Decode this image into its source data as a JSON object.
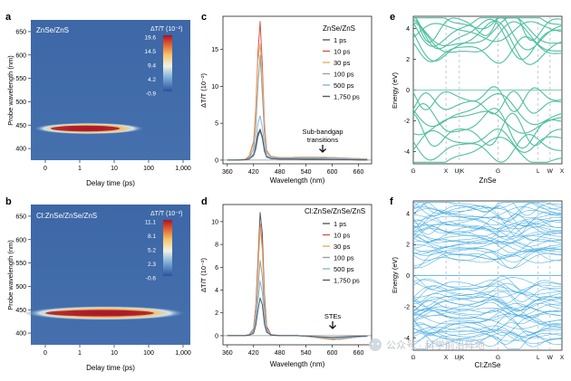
{
  "panels": {
    "a": {
      "letter": "a",
      "sample": "ZnSe/ZnS",
      "cbar_title": "ΔT/T (10⁻²)",
      "cbar_ticks": [
        "19.6",
        "14.5",
        "9.4",
        "4.2",
        "-0.9"
      ],
      "ylabel": "Probe wavelength (nm)",
      "xlabel": "Delay time (ps)",
      "yticks": [
        650,
        600,
        550,
        500,
        450,
        400
      ],
      "xticks": [
        "0",
        "1",
        "10",
        "100",
        "1,000"
      ]
    },
    "b": {
      "letter": "b",
      "sample": "Cl:ZnSe/ZnSe/ZnS",
      "cbar_title": "ΔT/T (10⁻²)",
      "cbar_ticks": [
        "11.1",
        "8.1",
        "5.2",
        "2.3",
        "-0.6"
      ],
      "ylabel": "Probe wavelength (nm)",
      "xlabel": "Delay time (ps)",
      "yticks": [
        650,
        600,
        550,
        500,
        450,
        400
      ],
      "xticks": [
        "0",
        "1",
        "10",
        "100",
        "1,000"
      ]
    },
    "c": {
      "letter": "c",
      "ylabel": "ΔT/T (10⁻²)",
      "xlabel": "Wavelength (nm)",
      "legend_title": "ZnSe/ZnS",
      "annotation": [
        "Sub-bandgap",
        "transitions"
      ]
    },
    "d": {
      "letter": "d",
      "ylabel": "ΔT/T (10⁻²)",
      "xlabel": "Wavelength (nm)",
      "legend_title": "Cl:ZnSe/ZnSe/ZnS",
      "annotation": [
        "STEs"
      ]
    },
    "e": {
      "letter": "e",
      "ylabel": "Energy (eV)",
      "xlabel": "ZnSe",
      "kpoints": [
        "G",
        "X",
        "U|K",
        "G",
        "L",
        "W",
        "X"
      ]
    },
    "f": {
      "letter": "f",
      "ylabel": "Energy (eV)",
      "xlabel": "Cl:ZnSe",
      "kpoints": [
        "G",
        "X",
        "U|K",
        "G",
        "L",
        "W",
        "X"
      ]
    }
  },
  "delays": [
    "1 ps",
    "10 ps",
    "30 ps",
    "100 ps",
    "500 ps",
    "1,750 ps"
  ],
  "colors": {
    "delay_series": [
      "#5a5a5a",
      "#d9534a",
      "#e3b060",
      "#9aa0a6",
      "#8ab6d6",
      "#4b5d6e"
    ],
    "band_e": "#4fbfa0",
    "band_f": "#3aa6e0",
    "heatmap_bg": "#3f6aa8"
  },
  "watermark": "公众号 · 科学前沿阵地",
  "chart_data": [
    {
      "type": "line",
      "panel": "c",
      "x": [
        360,
        380,
        400,
        410,
        420,
        425,
        430,
        435,
        440,
        445,
        450,
        460,
        480,
        500,
        520,
        540,
        560,
        580,
        600,
        620,
        640,
        660,
        680
      ],
      "series": [
        {
          "name": "1 ps",
          "values": [
            0,
            0,
            0.05,
            0.2,
            0.8,
            2.0,
            3.6,
            4.2,
            3.2,
            1.4,
            0.5,
            0.2,
            0.15,
            0.15,
            0.15,
            0.1,
            0.1,
            0.1,
            0.08,
            0.05,
            0.05,
            0.03,
            0.02
          ]
        },
        {
          "name": "10 ps",
          "values": [
            0,
            0,
            0.1,
            0.5,
            2.5,
            7.0,
            14.5,
            18.8,
            13.0,
            5.0,
            1.3,
            0.5,
            0.35,
            0.35,
            0.4,
            0.4,
            0.4,
            0.38,
            0.35,
            0.3,
            0.25,
            0.2,
            0.15
          ]
        },
        {
          "name": "30 ps",
          "values": [
            0,
            0,
            0.1,
            0.4,
            2.2,
            6.5,
            13.5,
            15.8,
            11.5,
            4.5,
            1.2,
            0.5,
            0.35,
            0.35,
            0.4,
            0.4,
            0.4,
            0.38,
            0.35,
            0.3,
            0.25,
            0.2,
            0.15
          ]
        },
        {
          "name": "100 ps",
          "values": [
            0,
            0,
            0.1,
            0.3,
            1.5,
            4.5,
            10.0,
            14.2,
            9.0,
            3.5,
            1.0,
            0.4,
            0.3,
            0.3,
            0.32,
            0.32,
            0.32,
            0.3,
            0.28,
            0.25,
            0.2,
            0.15,
            0.1
          ]
        },
        {
          "name": "500 ps",
          "values": [
            0,
            0,
            0.05,
            0.2,
            0.9,
            2.5,
            5.0,
            6.0,
            4.5,
            2.0,
            0.6,
            0.3,
            0.2,
            0.2,
            0.2,
            0.2,
            0.2,
            0.18,
            0.15,
            0.12,
            0.1,
            0.08,
            0.05
          ]
        },
        {
          "name": "1,750 ps",
          "values": [
            0,
            0,
            0.05,
            0.15,
            0.6,
            1.5,
            3.2,
            4.0,
            3.0,
            1.2,
            0.4,
            0.2,
            0.15,
            0.15,
            0.15,
            0.12,
            0.12,
            0.1,
            0.08,
            0.06,
            0.05,
            0.04,
            0.02
          ]
        }
      ],
      "xlabel": "Wavelength (nm)",
      "ylabel": "ΔT/T (10⁻²)",
      "xticks": [
        360,
        420,
        480,
        540,
        600,
        660
      ],
      "yticks": [
        0,
        5,
        10,
        15
      ],
      "xlim": [
        350,
        690
      ],
      "ylim": [
        -0.5,
        19.5
      ]
    },
    {
      "type": "line",
      "panel": "d",
      "x": [
        360,
        380,
        400,
        410,
        420,
        425,
        430,
        435,
        440,
        445,
        450,
        460,
        480,
        500,
        520,
        540,
        560,
        580,
        600,
        620,
        640,
        660,
        680
      ],
      "series": [
        {
          "name": "1 ps",
          "values": [
            0,
            0,
            0,
            0.1,
            0.6,
            2.5,
            6.5,
            10.8,
            9.0,
            3.5,
            0.8,
            0.1,
            0,
            0,
            0,
            -0.05,
            -0.15,
            -0.25,
            -0.35,
            -0.3,
            -0.2,
            -0.1,
            -0.05
          ]
        },
        {
          "name": "10 ps",
          "values": [
            0,
            0,
            0,
            0.1,
            0.6,
            2.4,
            6.0,
            9.8,
            8.0,
            3.0,
            0.7,
            0.1,
            0,
            0,
            0,
            -0.05,
            -0.15,
            -0.25,
            -0.35,
            -0.3,
            -0.2,
            -0.1,
            -0.05
          ]
        },
        {
          "name": "30 ps",
          "values": [
            0,
            0,
            0,
            0.1,
            0.5,
            2.2,
            5.5,
            9.5,
            7.5,
            2.8,
            0.6,
            0.1,
            0,
            0,
            0,
            -0.05,
            -0.15,
            -0.25,
            -0.35,
            -0.3,
            -0.2,
            -0.1,
            -0.05
          ]
        },
        {
          "name": "100 ps",
          "values": [
            0,
            0,
            0,
            0.1,
            0.4,
            1.8,
            4.0,
            6.6,
            5.2,
            2.0,
            0.5,
            0.1,
            0,
            0,
            0,
            -0.05,
            -0.12,
            -0.2,
            -0.28,
            -0.25,
            -0.18,
            -0.1,
            -0.05
          ]
        },
        {
          "name": "500 ps",
          "values": [
            0,
            0,
            0,
            0.05,
            0.3,
            1.2,
            3.0,
            4.8,
            3.8,
            1.5,
            0.4,
            0.05,
            0,
            0,
            0,
            -0.03,
            -0.1,
            -0.15,
            -0.2,
            -0.18,
            -0.12,
            -0.08,
            -0.04
          ]
        },
        {
          "name": "1,750 ps",
          "values": [
            0,
            0,
            0,
            0.05,
            0.2,
            0.9,
            2.2,
            3.3,
            2.7,
            1.0,
            0.3,
            0.05,
            0,
            0,
            0,
            -0.02,
            -0.08,
            -0.12,
            -0.15,
            -0.12,
            -0.08,
            -0.05,
            -0.02
          ]
        }
      ],
      "xlabel": "Wavelength (nm)",
      "ylabel": "ΔT/T (10⁻²)",
      "xticks": [
        360,
        420,
        480,
        540,
        600,
        660
      ],
      "yticks": [
        0,
        2,
        4,
        6,
        8,
        10
      ],
      "xlim": [
        350,
        690
      ],
      "ylim": [
        -0.8,
        11.5
      ]
    },
    {
      "type": "heatmap",
      "panel": "a",
      "feature_center_nm": 432,
      "max_value": 19.6,
      "min_value": -0.9,
      "xticks": [
        "0",
        "1",
        "10",
        "100",
        "1,000"
      ],
      "yticks": [
        400,
        450,
        500,
        550,
        600,
        650
      ]
    },
    {
      "type": "heatmap",
      "panel": "b",
      "feature_center_nm": 432,
      "max_value": 11.1,
      "min_value": -0.6,
      "xticks": [
        "0",
        "1",
        "10",
        "100",
        "1,000"
      ],
      "yticks": [
        400,
        450,
        500,
        550,
        600,
        650
      ]
    },
    {
      "type": "line",
      "panel": "e",
      "yticks": [
        -4,
        -2,
        0,
        2,
        4
      ],
      "ylim": [
        -4.8,
        4.8
      ]
    },
    {
      "type": "line",
      "panel": "f",
      "yticks": [
        -4,
        -2,
        0,
        2,
        4
      ],
      "ylim": [
        -4.8,
        4.8
      ]
    }
  ]
}
